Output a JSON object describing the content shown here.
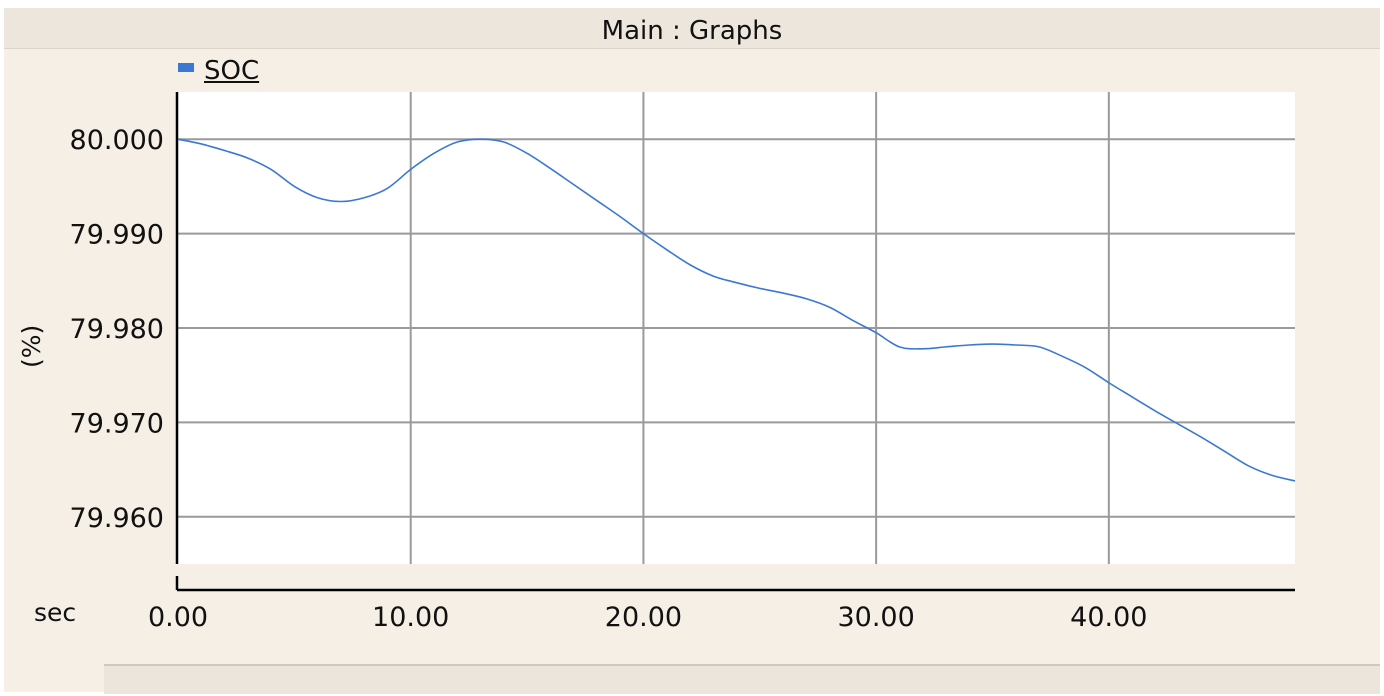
{
  "window": {
    "title": "Main : Graphs"
  },
  "colors": {
    "series": "#3a78d4",
    "grid": "#9a9a9a",
    "panel": "#f5efe6"
  },
  "chart_data": {
    "type": "line",
    "xlabel": "sec",
    "ylabel": "(%)",
    "xlim": [
      0,
      48
    ],
    "ylim": [
      79.955,
      80.005
    ],
    "x_ticks": [
      0,
      10,
      20,
      30,
      40
    ],
    "x_tick_labels": [
      "0.00",
      "10.00",
      "20.00",
      "30.00",
      "40.00"
    ],
    "y_ticks": [
      80.0,
      79.99,
      79.98,
      79.97,
      79.96
    ],
    "y_tick_labels": [
      "80.000",
      "79.990",
      "79.980",
      "79.970",
      "79.960"
    ],
    "grid": true,
    "legend_position": "top-left",
    "series": [
      {
        "name": "SOC",
        "color": "#3a78d4",
        "x": [
          0,
          1,
          2,
          3,
          4,
          5,
          6,
          7,
          8,
          9,
          10,
          11,
          12,
          13,
          14,
          15,
          16,
          17,
          18,
          19,
          20,
          21,
          22,
          23,
          24,
          25,
          26,
          27,
          28,
          29,
          30,
          31,
          32,
          33,
          34,
          35,
          36,
          37,
          38,
          39,
          40,
          41,
          42,
          43,
          44,
          45,
          46,
          47,
          48
        ],
        "y": [
          80.0,
          79.9995,
          79.9988,
          79.998,
          79.9968,
          79.995,
          79.9938,
          79.9934,
          79.9938,
          79.9948,
          79.9968,
          79.9985,
          79.9997,
          80.0,
          79.9997,
          79.9985,
          79.9969,
          79.9952,
          79.9935,
          79.9918,
          79.99,
          79.9883,
          79.9867,
          79.9855,
          79.9848,
          79.9842,
          79.9837,
          79.9831,
          79.9822,
          79.9808,
          79.9795,
          79.978,
          79.9778,
          79.978,
          79.9782,
          79.9783,
          79.9782,
          79.978,
          79.977,
          79.9758,
          79.9742,
          79.9727,
          79.9712,
          79.9698,
          79.9684,
          79.9669,
          79.9654,
          79.9644,
          79.9638
        ]
      }
    ]
  }
}
